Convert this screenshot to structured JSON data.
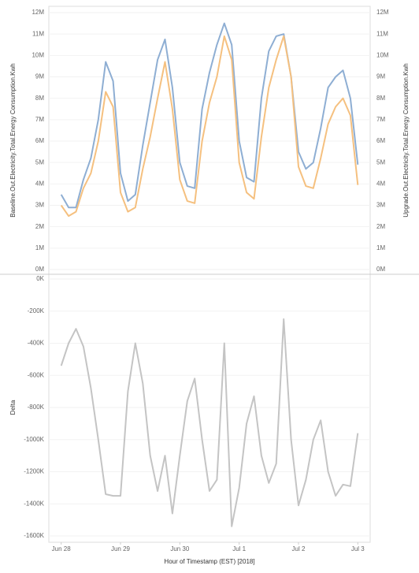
{
  "chart_data": [
    {
      "type": "line",
      "y_label": "Baseline.Out.Electricity.Total.Energy Consumption.Kwh",
      "y2_label": "Upgrade.Out.Electricity.Total.Energy Consumption.Kwh",
      "x": [
        0,
        3,
        6,
        9,
        12,
        15,
        18,
        21,
        24,
        27,
        30,
        33,
        36,
        39,
        42,
        45,
        48,
        51,
        54,
        57,
        60,
        63,
        66,
        69,
        72,
        75,
        78,
        81,
        84,
        87,
        90,
        93,
        96,
        99,
        102,
        105,
        108,
        111,
        114,
        117,
        120
      ],
      "xlim": [
        -5,
        125
      ],
      "ylim": [
        0,
        12000000
      ],
      "yticks": [
        {
          "value": 0,
          "label": "0M"
        },
        {
          "value": 1000000,
          "label": "1M"
        },
        {
          "value": 2000000,
          "label": "2M"
        },
        {
          "value": 3000000,
          "label": "3M"
        },
        {
          "value": 4000000,
          "label": "4M"
        },
        {
          "value": 5000000,
          "label": "5M"
        },
        {
          "value": 6000000,
          "label": "6M"
        },
        {
          "value": 7000000,
          "label": "7M"
        },
        {
          "value": 8000000,
          "label": "8M"
        },
        {
          "value": 9000000,
          "label": "9M"
        },
        {
          "value": 10000000,
          "label": "10M"
        },
        {
          "value": 11000000,
          "label": "11M"
        },
        {
          "value": 12000000,
          "label": "12M"
        }
      ],
      "y2lim": [
        0,
        12000000
      ],
      "y2ticks": [
        {
          "value": 0,
          "label": "0M"
        },
        {
          "value": 1000000,
          "label": "1M"
        },
        {
          "value": 2000000,
          "label": "2M"
        },
        {
          "value": 3000000,
          "label": "3M"
        },
        {
          "value": 4000000,
          "label": "4M"
        },
        {
          "value": 5000000,
          "label": "5M"
        },
        {
          "value": 6000000,
          "label": "6M"
        },
        {
          "value": 7000000,
          "label": "7M"
        },
        {
          "value": 8000000,
          "label": "8M"
        },
        {
          "value": 9000000,
          "label": "9M"
        },
        {
          "value": 10000000,
          "label": "10M"
        },
        {
          "value": 11000000,
          "label": "11M"
        },
        {
          "value": 12000000,
          "label": "12M"
        }
      ],
      "series": [
        {
          "name": "Baseline.Out.Electricity.Total.Energy Consumption.Kwh",
          "color": "#8eaed3",
          "values": [
            3500000,
            2900000,
            2900000,
            4200000,
            5200000,
            7000000,
            9700000,
            8800000,
            4500000,
            3200000,
            3500000,
            5800000,
            7800000,
            9800000,
            10750000,
            8500000,
            5000000,
            3900000,
            3800000,
            7500000,
            9200000,
            10500000,
            11500000,
            10500000,
            6000000,
            4300000,
            4100000,
            8000000,
            10200000,
            10900000,
            11000000,
            9000000,
            5500000,
            4700000,
            5000000,
            6600000,
            8500000,
            9000000,
            9300000,
            8000000,
            4900000
          ]
        },
        {
          "name": "Upgrade.Out.Electricity.Total.Energy Consumption.Kwh",
          "color": "#f5c07f",
          "axis": "y2",
          "values": [
            3000000,
            2500000,
            2700000,
            3800000,
            4500000,
            6000000,
            8300000,
            7600000,
            3600000,
            2700000,
            2900000,
            4700000,
            6200000,
            8000000,
            9700000,
            7500000,
            4200000,
            3200000,
            3100000,
            6000000,
            7800000,
            9000000,
            10900000,
            9800000,
            5000000,
            3600000,
            3300000,
            6200000,
            8500000,
            9800000,
            10900000,
            9000000,
            4800000,
            3900000,
            3800000,
            5200000,
            6800000,
            7600000,
            8000000,
            7200000,
            3950000
          ]
        }
      ]
    },
    {
      "type": "line",
      "y_label": "Delta",
      "x_label": "Hour of Timestamp (EST) [2018]",
      "x": [
        0,
        3,
        6,
        9,
        12,
        15,
        18,
        21,
        24,
        27,
        30,
        33,
        36,
        39,
        42,
        45,
        48,
        51,
        54,
        57,
        60,
        63,
        66,
        69,
        72,
        75,
        78,
        81,
        84,
        87,
        90,
        93,
        96,
        99,
        102,
        105,
        108,
        111,
        114,
        117,
        120
      ],
      "xlim": [
        -5,
        125
      ],
      "xticks": [
        {
          "value": 0,
          "label": "Jun 28"
        },
        {
          "value": 24,
          "label": "Jun 29"
        },
        {
          "value": 48,
          "label": "Jun 30"
        },
        {
          "value": 72,
          "label": "Jul 1"
        },
        {
          "value": 96,
          "label": "Jul 2"
        },
        {
          "value": 120,
          "label": "Jul 3"
        }
      ],
      "ylim": [
        -1600000,
        0
      ],
      "yticks": [
        {
          "value": 0,
          "label": "0K"
        },
        {
          "value": -200000,
          "label": "-200K"
        },
        {
          "value": -400000,
          "label": "-400K"
        },
        {
          "value": -600000,
          "label": "-600K"
        },
        {
          "value": -800000,
          "label": "-800K"
        },
        {
          "value": -1000000,
          "label": "-1000K"
        },
        {
          "value": -1200000,
          "label": "-1200K"
        },
        {
          "value": -1400000,
          "label": "-1400K"
        },
        {
          "value": -1600000,
          "label": "-1600K"
        }
      ],
      "series": [
        {
          "name": "Delta",
          "color": "#c4c4c4",
          "values": [
            -540000,
            -400000,
            -310000,
            -420000,
            -680000,
            -1000000,
            -1340000,
            -1350000,
            -1350000,
            -700000,
            -400000,
            -650000,
            -1100000,
            -1320000,
            -1100000,
            -1460000,
            -1100000,
            -760000,
            -620000,
            -1000000,
            -1320000,
            -1250000,
            -400000,
            -1540000,
            -1300000,
            -900000,
            -730000,
            -1100000,
            -1270000,
            -1150000,
            -250000,
            -1000000,
            -1410000,
            -1250000,
            -1000000,
            -880000,
            -1200000,
            -1350000,
            -1280000,
            -1290000,
            -960000
          ]
        }
      ]
    }
  ]
}
